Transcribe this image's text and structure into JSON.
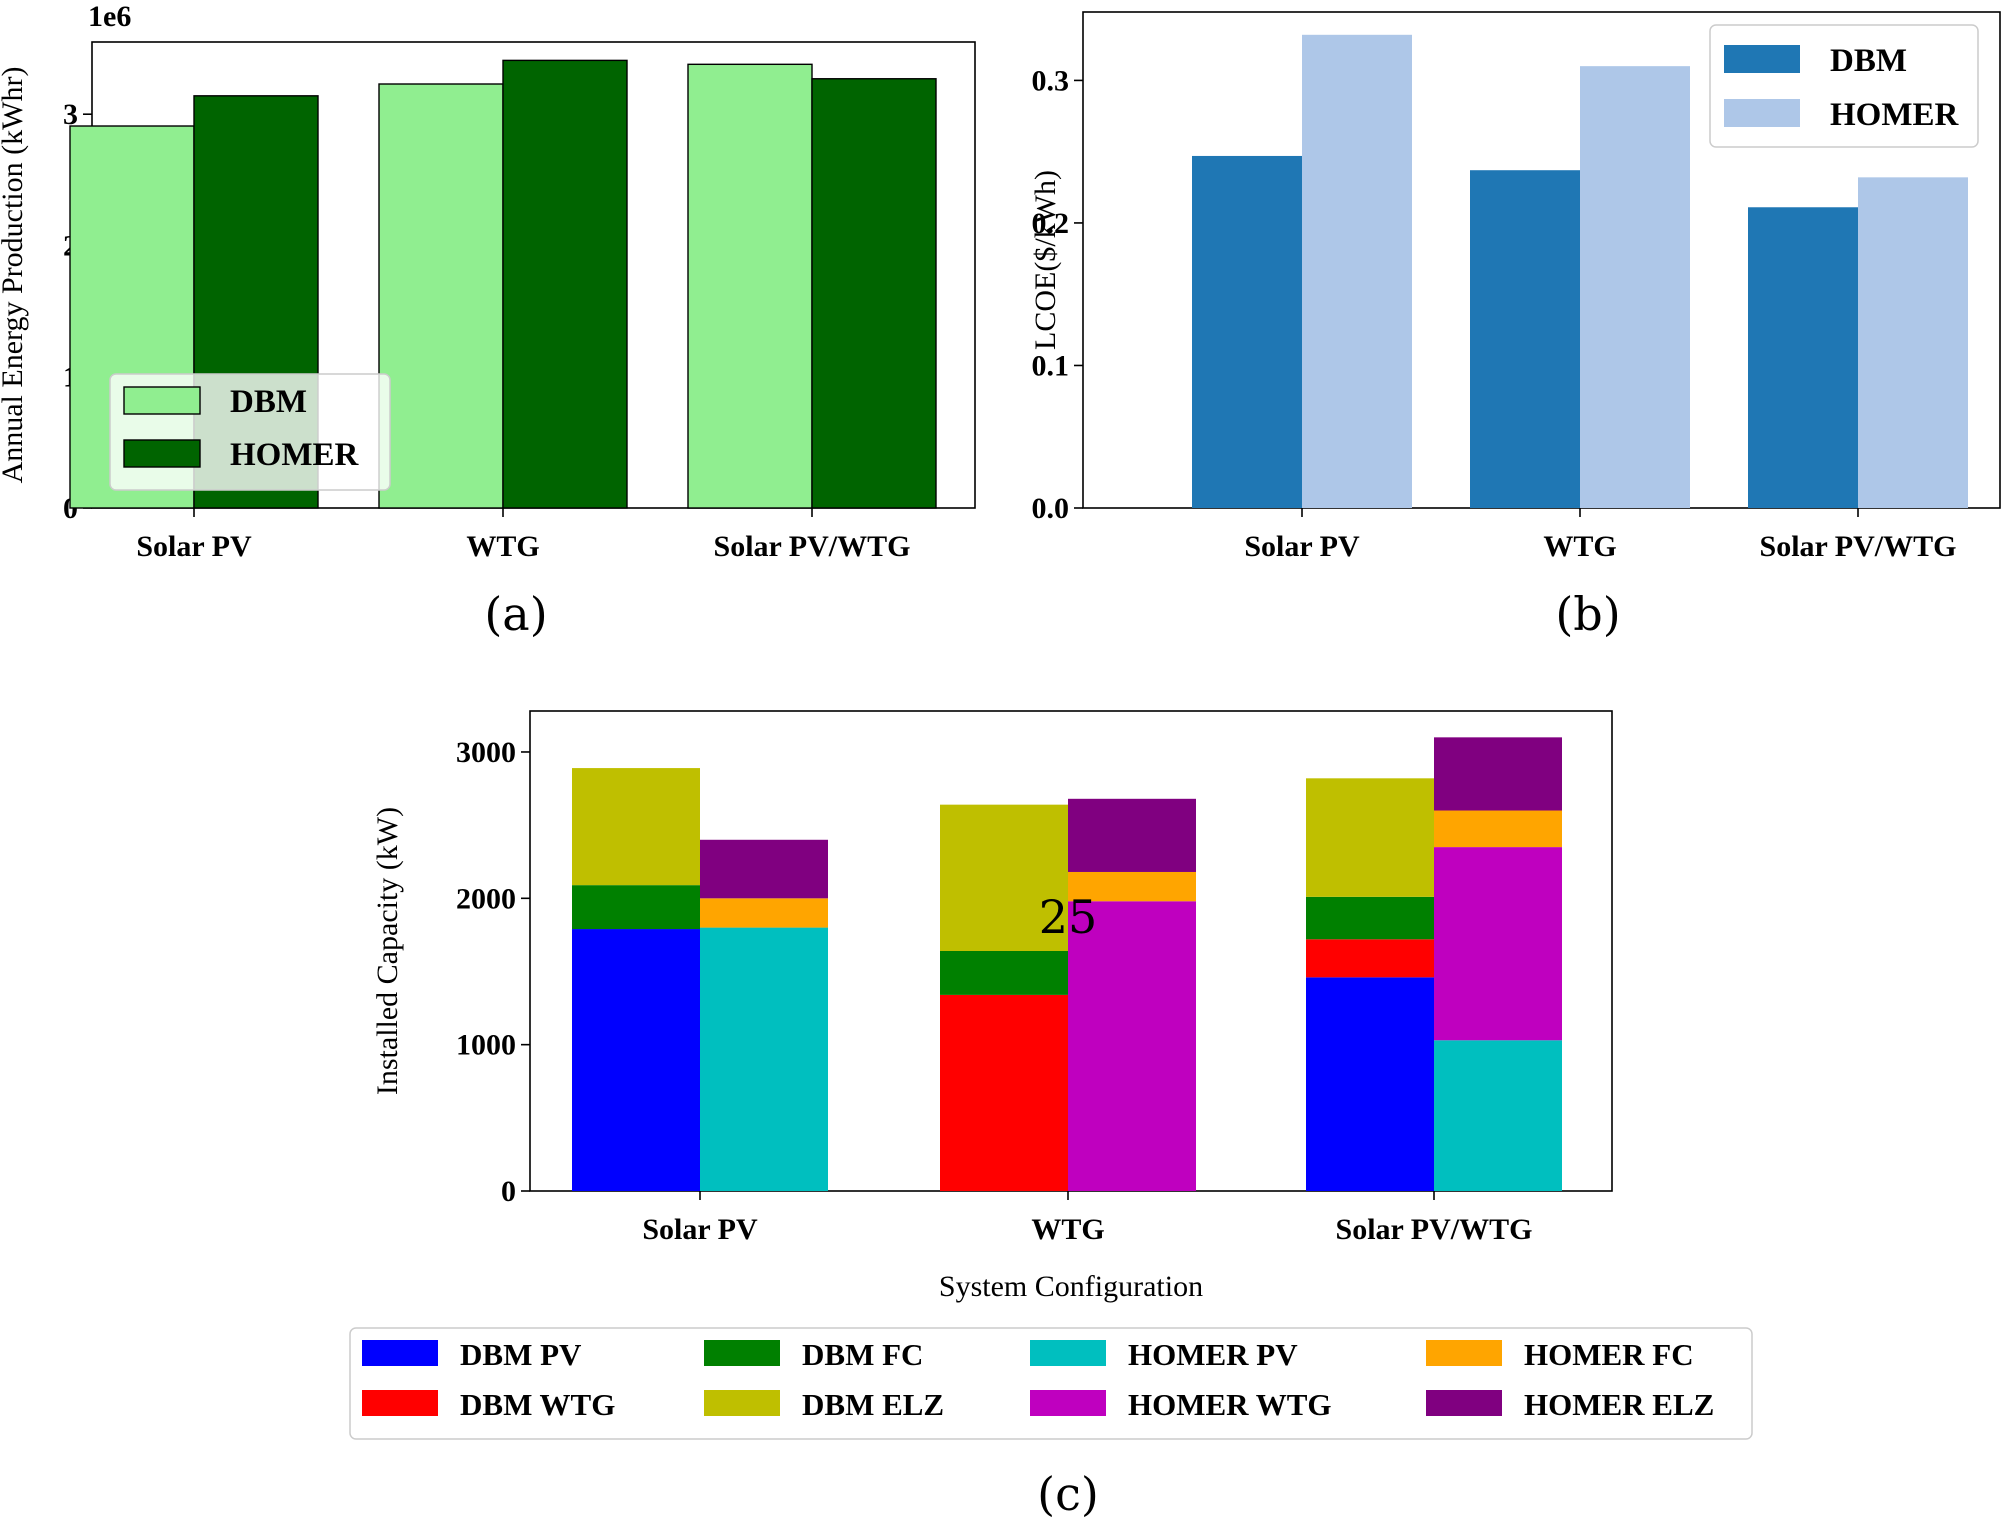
{
  "chart_data": [
    {
      "id": "a",
      "type": "bar",
      "caption": "(a)",
      "title": "",
      "xlabel": "",
      "ylabel": "Annual Energy Production (kWhr)",
      "offset_label": "1e6",
      "categories": [
        "Solar PV",
        "WTG",
        "Solar PV/WTG"
      ],
      "series": [
        {
          "name": "DBM",
          "values": [
            2.91,
            3.23,
            3.38
          ],
          "color": "#90ee90"
        },
        {
          "name": "HOMER",
          "values": [
            3.14,
            3.41,
            3.27
          ],
          "color": "#006400"
        }
      ],
      "ylim": [
        0,
        3.55
      ],
      "yticks": [
        0,
        1,
        2,
        3
      ],
      "grid": false,
      "legend": "bottom-left"
    },
    {
      "id": "b",
      "type": "bar",
      "caption": "(b)",
      "title": "",
      "xlabel": "",
      "ylabel": "LCOE($/kWh)",
      "categories": [
        "Solar PV",
        "WTG",
        "Solar PV/WTG"
      ],
      "series": [
        {
          "name": "DBM",
          "values": [
            0.247,
            0.237,
            0.211
          ],
          "color": "#1f77b4"
        },
        {
          "name": "HOMER",
          "values": [
            0.332,
            0.31,
            0.232
          ],
          "color": "#aec7e8"
        }
      ],
      "ylim": [
        0,
        0.348
      ],
      "yticks": [
        "0.0",
        "0.1",
        "0.2",
        "0.3"
      ],
      "grid": false,
      "legend": "top-right"
    },
    {
      "id": "c",
      "type": "bar",
      "stacked": true,
      "caption": "(c)",
      "title": "",
      "xlabel": "System Configuration",
      "ylabel": "Installed Capacity (kW)",
      "categories": [
        "Solar PV",
        "WTG",
        "Solar PV/WTG"
      ],
      "groups": [
        {
          "name": "DBM",
          "stacks": [
            {
              "name": "DBM PV",
              "values": [
                1790,
                0,
                1460
              ],
              "color": "#0000ff"
            },
            {
              "name": "DBM WTG",
              "values": [
                0,
                1340,
                260
              ],
              "color": "#ff0000"
            },
            {
              "name": "DBM FC",
              "values": [
                300,
                300,
                290
              ],
              "color": "#008000"
            },
            {
              "name": "DBM ELZ",
              "values": [
                800,
                1000,
                810
              ],
              "color": "#bfbf00"
            }
          ]
        },
        {
          "name": "HOMER",
          "stacks": [
            {
              "name": "HOMER PV",
              "values": [
                1800,
                0,
                1030
              ],
              "color": "#00bfbf"
            },
            {
              "name": "HOMER WTG",
              "values": [
                0,
                1980,
                1320
              ],
              "color": "#bf00bf"
            },
            {
              "name": "HOMER FC",
              "values": [
                200,
                200,
                250
              ],
              "color": "#ffa500"
            },
            {
              "name": "HOMER ELZ",
              "values": [
                400,
                500,
                500
              ],
              "color": "#800080"
            }
          ]
        }
      ],
      "ylim": [
        0,
        3280
      ],
      "yticks": [
        0,
        1000,
        2000,
        3000
      ],
      "grid": false,
      "legend": "below",
      "legend_order": [
        "DBM PV",
        "DBM FC",
        "HOMER PV",
        "HOMER FC",
        "DBM WTG",
        "DBM ELZ",
        "HOMER WTG",
        "HOMER ELZ"
      ]
    }
  ],
  "page_number": "25"
}
